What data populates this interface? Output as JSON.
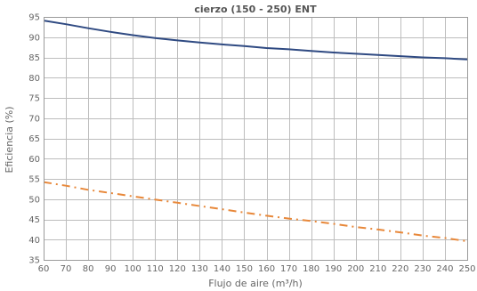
{
  "chart_data": {
    "type": "line",
    "title": "cierzo (150 - 250) ENT",
    "xlabel": "Flujo de aire (m³/h)",
    "ylabel": "Eficiencia (%)",
    "xlim": [
      60,
      250
    ],
    "ylim": [
      35,
      95
    ],
    "xticks": [
      60,
      70,
      80,
      90,
      100,
      110,
      120,
      130,
      140,
      150,
      160,
      170,
      180,
      190,
      200,
      210,
      220,
      230,
      240,
      250
    ],
    "yticks": [
      35,
      40,
      45,
      50,
      55,
      60,
      65,
      70,
      75,
      80,
      85,
      90,
      95
    ],
    "grid": true,
    "legend": "none",
    "x": [
      60,
      70,
      80,
      90,
      100,
      110,
      120,
      130,
      140,
      150,
      160,
      170,
      180,
      190,
      200,
      210,
      220,
      230,
      240,
      250
    ],
    "series": [
      {
        "color": "#2f4a82",
        "style": "solid",
        "values": [
          94.1,
          93.2,
          92.2,
          91.3,
          90.5,
          89.8,
          89.2,
          88.7,
          88.2,
          87.8,
          87.3,
          87.0,
          86.6,
          86.2,
          85.9,
          85.6,
          85.3,
          85.0,
          84.8,
          84.5
        ]
      },
      {
        "color": "#e8883a",
        "style": "dash-dot",
        "values": [
          54.2,
          53.3,
          52.3,
          51.5,
          50.7,
          49.9,
          49.1,
          48.3,
          47.5,
          46.7,
          45.9,
          45.2,
          44.6,
          43.9,
          43.1,
          42.5,
          41.8,
          41.0,
          40.4,
          39.6
        ]
      }
    ]
  }
}
